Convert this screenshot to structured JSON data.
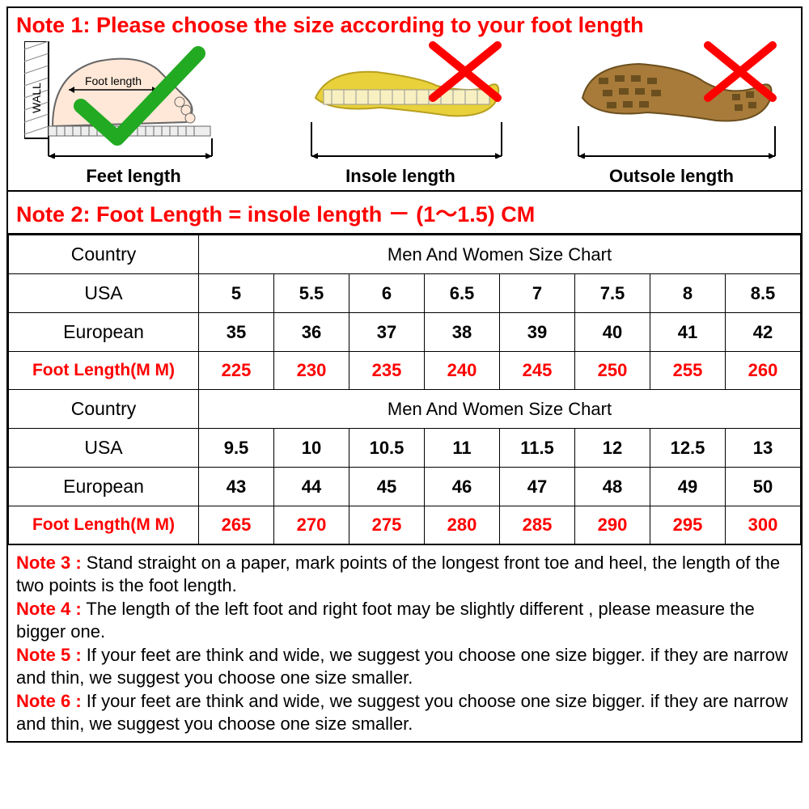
{
  "note1": {
    "title": "Note 1: Please choose the size according to your foot length",
    "diagrams": [
      {
        "label": "Feet length",
        "foot_text": "Foot length",
        "wall_text": "WALL",
        "check_color": "#2aa32a"
      },
      {
        "label": "Insole length",
        "insole_color": "#e8d13a",
        "cross_color": "#f00"
      },
      {
        "label": "Outsole length",
        "outsole_color": "#a87b3a",
        "cross_color": "#f00"
      }
    ]
  },
  "note2": {
    "title": "Note 2: Foot Length = insole length － (1～1.5) CM"
  },
  "size_chart": {
    "type": "table",
    "col_widths": {
      "label": 235,
      "data": 93
    },
    "text_color": "#000000",
    "red_color": "#ff0000",
    "border_color": "#000000",
    "background_color": "#ffffff",
    "font_size": 22,
    "block1": {
      "header_label": "Country",
      "header_span": "Men And Women Size Chart",
      "rows": [
        {
          "label": "USA",
          "values": [
            "5",
            "5.5",
            "6",
            "6.5",
            "7",
            "7.5",
            "8",
            "8.5"
          ],
          "red": false
        },
        {
          "label": "European",
          "values": [
            "35",
            "36",
            "37",
            "38",
            "39",
            "40",
            "41",
            "42"
          ],
          "red": false
        },
        {
          "label": "Foot Length(M M)",
          "values": [
            "225",
            "230",
            "235",
            "240",
            "245",
            "250",
            "255",
            "260"
          ],
          "red": true
        }
      ]
    },
    "block2": {
      "header_label": "Country",
      "header_span": "Men And Women Size Chart",
      "rows": [
        {
          "label": "USA",
          "values": [
            "9.5",
            "10",
            "10.5",
            "11",
            "11.5",
            "12",
            "12.5",
            "13"
          ],
          "red": false
        },
        {
          "label": "European",
          "values": [
            "43",
            "44",
            "45",
            "46",
            "47",
            "48",
            "49",
            "50"
          ],
          "red": false
        },
        {
          "label": "Foot Length(M M)",
          "values": [
            "265",
            "270",
            "275",
            "280",
            "285",
            "290",
            "295",
            "300"
          ],
          "red": true
        }
      ]
    }
  },
  "notes": [
    {
      "prefix": "Note 3 :",
      "text": " Stand straight on a paper, mark points of the longest front toe and heel, the length of the two points is the foot length."
    },
    {
      "prefix": "Note 4 :",
      "text": " The length of the left foot and right foot may be slightly different , please measure the bigger one."
    },
    {
      "prefix": "Note 5 :",
      "text": " If your feet are think and wide, we suggest you choose one size bigger. if they are narrow and thin, we suggest you choose one size smaller."
    },
    {
      "prefix": "Note 6 :",
      "text": " If your feet are think and wide, we suggest you choose one size bigger. if they are narrow and thin, we suggest you choose one size smaller."
    }
  ]
}
